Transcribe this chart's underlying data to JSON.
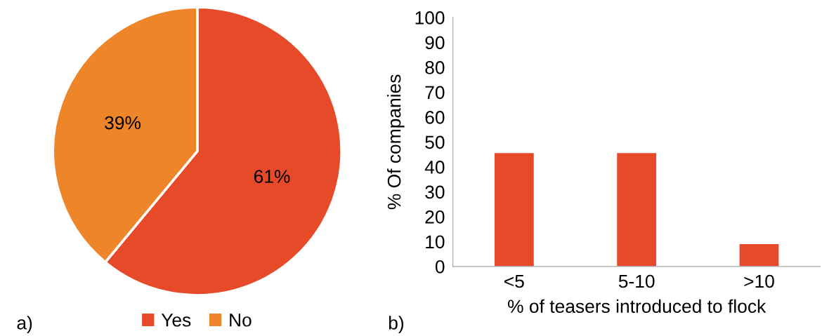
{
  "chart_data": [
    {
      "type": "pie",
      "categories": [
        "Yes",
        "No"
      ],
      "values": [
        61,
        39
      ],
      "colors": [
        "#e64a28",
        "#ee8629"
      ],
      "value_labels": [
        "61%",
        "39%"
      ],
      "legend": "bottom",
      "annotations": [
        "a)"
      ]
    },
    {
      "type": "bar",
      "categories": [
        "<5",
        "5-10",
        ">10"
      ],
      "values": [
        45.5,
        45.5,
        9
      ],
      "color": "#e64a28",
      "xlabel": "% of teasers introduced to flock",
      "ylabel": "% Of companies",
      "ylim": [
        0,
        100
      ],
      "yticks": [
        0,
        10,
        20,
        30,
        40,
        50,
        60,
        70,
        80,
        90,
        100
      ],
      "grid": false,
      "annotations": [
        "b)"
      ]
    }
  ]
}
